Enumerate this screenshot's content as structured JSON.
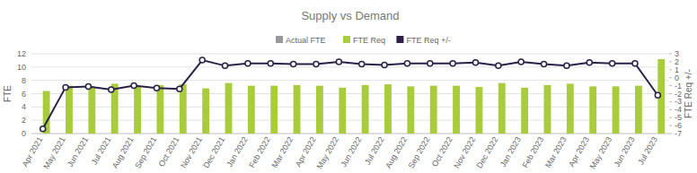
{
  "chart_data": {
    "type": "bar",
    "title": "Supply vs Demand",
    "y_label": "FTE",
    "y2_label": "FTE Req +/-",
    "categories": [
      "Apr 2021",
      "May 2021",
      "Jun 2021",
      "Jul 2021",
      "Aug 2021",
      "Sep 2021",
      "Oct 2021",
      "Nov 2021",
      "Dec 2021",
      "Jan 2022",
      "Feb 2022",
      "Mar 2022",
      "Apr 2022",
      "May 2022",
      "Jun 2022",
      "Jul 2022",
      "Aug 2022",
      "Sep 2022",
      "Oct 2022",
      "Nov 2022",
      "Dec 2022",
      "Jan 2023",
      "Feb 2023",
      "Mar 2023",
      "Apr 2023",
      "May 2023",
      "Jun 2023",
      "Jul 2023"
    ],
    "series": [
      {
        "name": "Actual FTE",
        "color": "#999999",
        "type": "bar",
        "values": [
          null,
          null,
          null,
          null,
          null,
          null,
          null,
          null,
          null,
          null,
          null,
          null,
          null,
          null,
          null,
          null,
          null,
          null,
          null,
          null,
          null,
          null,
          null,
          null,
          null,
          null,
          null,
          null
        ]
      },
      {
        "name": "FTE Req",
        "color": "#a8cc3c",
        "type": "bar",
        "values": [
          6.4,
          7.2,
          7.0,
          7.5,
          7.1,
          7.3,
          7.4,
          6.8,
          7.6,
          7.2,
          7.2,
          7.3,
          7.2,
          6.9,
          7.3,
          7.4,
          7.1,
          7.2,
          7.2,
          7.0,
          7.6,
          6.9,
          7.3,
          7.5,
          7.1,
          7.1,
          7.2,
          11.2
        ]
      },
      {
        "name": "FTE Req +/-",
        "color": "#2b2148",
        "type": "line",
        "axis": "y2",
        "marker": "circle",
        "values": [
          -6.4,
          -1.2,
          -1.1,
          -1.5,
          -1.0,
          -1.3,
          -1.4,
          2.2,
          1.5,
          1.8,
          1.8,
          1.7,
          1.7,
          2.0,
          1.7,
          1.6,
          1.8,
          1.8,
          1.8,
          1.9,
          1.5,
          2.0,
          1.7,
          1.5,
          1.9,
          1.8,
          1.8,
          -2.2
        ]
      }
    ],
    "ylim": [
      0,
      12
    ],
    "yticks": [
      0,
      2,
      4,
      6,
      8,
      10,
      12
    ],
    "y2lim": [
      -7,
      3
    ],
    "y2ticks": [
      -7,
      -6,
      -5,
      -4,
      -3,
      -2,
      -1,
      0,
      1,
      2,
      3
    ],
    "grid": true,
    "legend": "top"
  }
}
